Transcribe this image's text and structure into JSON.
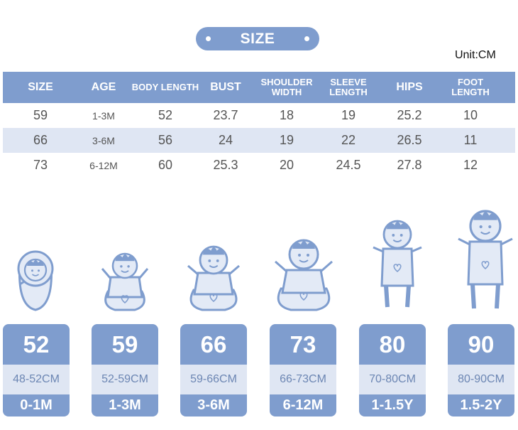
{
  "title": "SIZE",
  "unit": "Unit:CM",
  "table": {
    "headers": [
      "SIZE",
      "AGE",
      "BODY LENGTH",
      "BUST",
      "SHOULDER WIDTH",
      "SLEEVE LENGTH",
      "HIPS",
      "FOOT LENGTH"
    ],
    "rows": [
      [
        "59",
        "1-3M",
        "52",
        "23.7",
        "18",
        "19",
        "25.2",
        "10"
      ],
      [
        "66",
        "3-6M",
        "56",
        "24",
        "19",
        "22",
        "26.5",
        "11"
      ],
      [
        "73",
        "6-12M",
        "60",
        "25.3",
        "20",
        "24.5",
        "27.8",
        "12"
      ]
    ]
  },
  "cards": [
    {
      "size": "52",
      "range": "48-52CM",
      "age": "0-1M",
      "icon": "swaddled-baby-icon"
    },
    {
      "size": "59",
      "range": "52-59CM",
      "age": "1-3M",
      "icon": "sitting-baby-icon"
    },
    {
      "size": "66",
      "range": "59-66CM",
      "age": "3-6M",
      "icon": "sitting-baby-icon"
    },
    {
      "size": "73",
      "range": "66-73CM",
      "age": "6-12M",
      "icon": "sitting-baby-icon"
    },
    {
      "size": "80",
      "range": "70-80CM",
      "age": "1-1.5Y",
      "icon": "standing-baby-icon"
    },
    {
      "size": "90",
      "range": "80-90CM",
      "age": "1.5-2Y",
      "icon": "standing-baby-icon"
    }
  ],
  "colors": {
    "accent": "#7f9dce",
    "light": "#dfe6f3",
    "text": "#555555",
    "icon_fill": "#e3eaf6",
    "icon_stroke": "#7f9dce"
  }
}
